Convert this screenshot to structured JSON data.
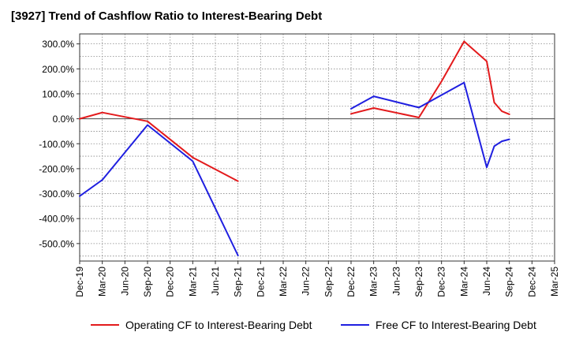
{
  "chart_data": {
    "type": "line",
    "title": "[3927]  Trend of Cashflow Ratio to Interest-Bearing Debt",
    "xlabel": "",
    "ylabel": "",
    "ylim": [
      -570,
      340
    ],
    "y_ticks": [
      300,
      200,
      100,
      0,
      -100,
      -200,
      -300,
      -400,
      -500
    ],
    "y_tick_labels": [
      "300.0%",
      "200.0%",
      "100.0%",
      "0.0%",
      "-100.0%",
      "-200.0%",
      "-300.0%",
      "-400.0%",
      "-500.0%"
    ],
    "x_tick_labels": [
      "Dec-19",
      "Mar-20",
      "Jun-20",
      "Sep-20",
      "Dec-20",
      "Mar-21",
      "Jun-21",
      "Sep-21",
      "Dec-21",
      "Mar-22",
      "Jun-22",
      "Sep-22",
      "Dec-22",
      "Mar-23",
      "Jun-23",
      "Sep-23",
      "Dec-23",
      "Mar-24",
      "Jun-24",
      "Sep-24",
      "Dec-24",
      "Mar-25"
    ],
    "x_unit": "quarter index from Dec-19",
    "grid": true,
    "legend_position": "bottom",
    "series": [
      {
        "name": "Operating CF to Interest-Bearing Debt",
        "color": "#e31a1c",
        "segments": [
          [
            [
              0,
              0
            ],
            [
              1,
              25
            ],
            [
              3,
              -10
            ],
            [
              5,
              -155
            ],
            [
              7,
              -250
            ]
          ],
          [
            [
              12,
              20
            ],
            [
              13,
              43
            ],
            [
              15,
              5
            ],
            [
              16,
              150
            ],
            [
              17,
              310
            ],
            [
              18,
              230
            ],
            [
              18.33,
              65
            ],
            [
              18.67,
              30
            ],
            [
              19,
              18
            ]
          ]
        ]
      },
      {
        "name": "Free CF to Interest-Bearing Debt",
        "color": "#1f1fe0",
        "segments": [
          [
            [
              0,
              -310
            ],
            [
              1,
              -245
            ],
            [
              3,
              -25
            ],
            [
              5,
              -170
            ],
            [
              7,
              -548
            ]
          ],
          [
            [
              12,
              40
            ],
            [
              13,
              90
            ],
            [
              15,
              45
            ],
            [
              17,
              145
            ],
            [
              18,
              -195
            ],
            [
              18.33,
              -110
            ],
            [
              18.67,
              -90
            ],
            [
              19,
              -82
            ]
          ]
        ]
      }
    ]
  }
}
